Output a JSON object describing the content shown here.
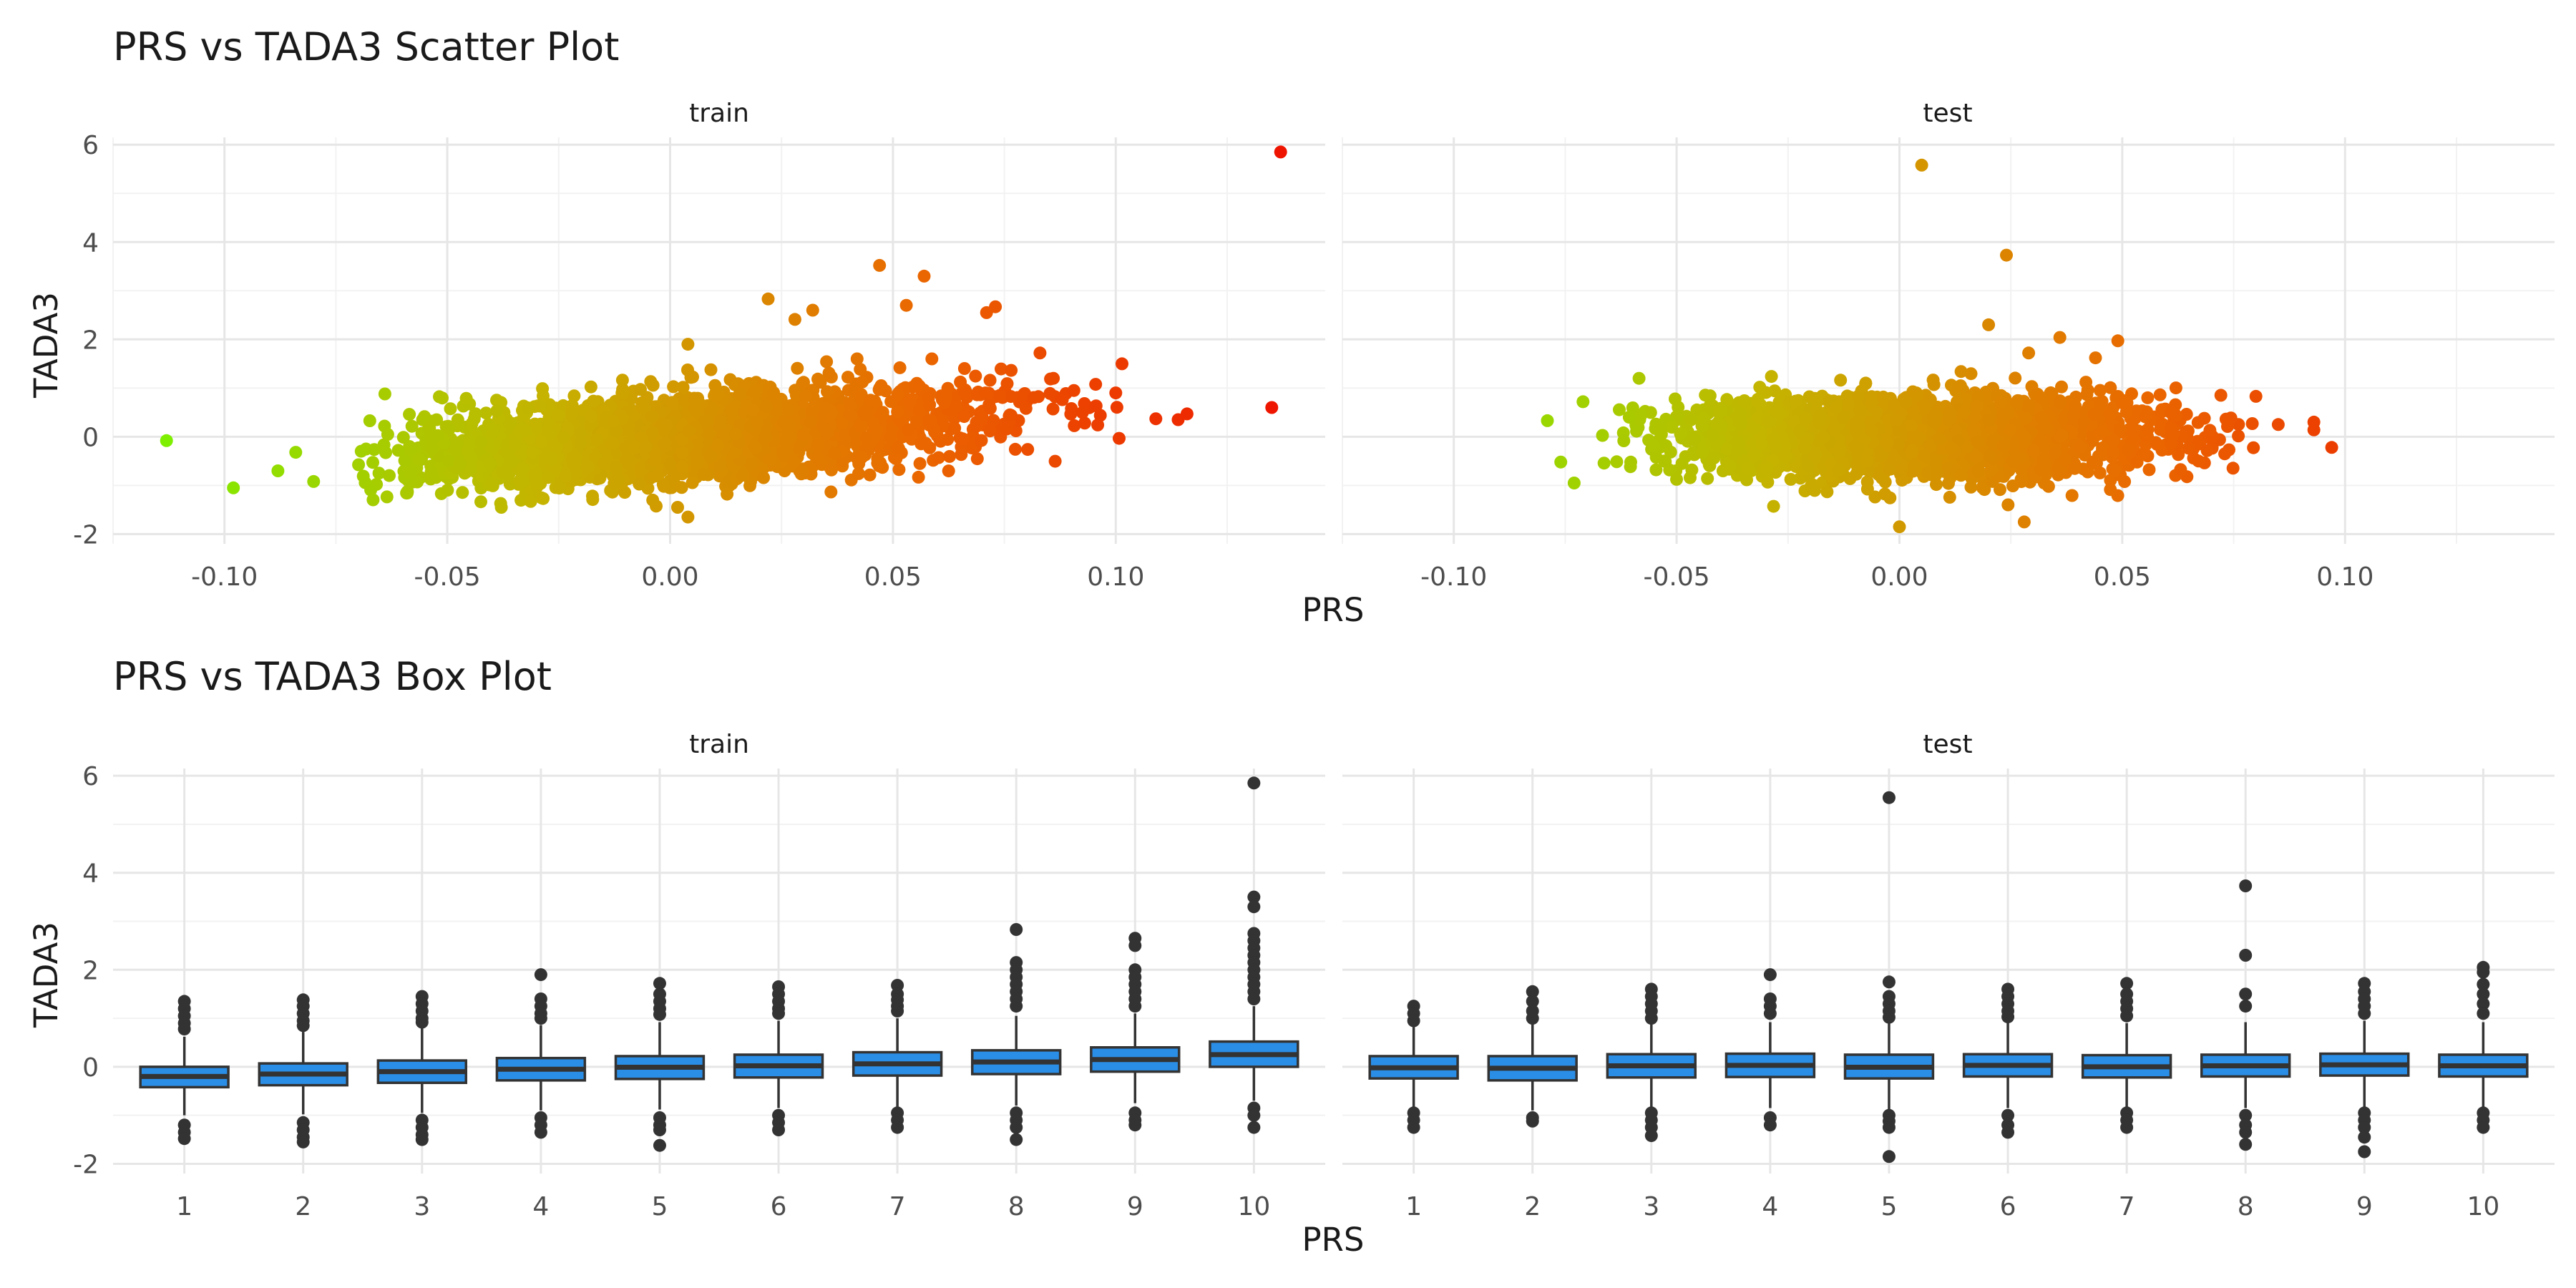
{
  "chart_data": [
    {
      "type": "scatter",
      "title": "PRS vs TADA3 Scatter Plot",
      "xlabel": "PRS",
      "ylabel": "TADA3",
      "xlim": [
        -0.125,
        0.147
      ],
      "ylim": [
        -2.2,
        6.15
      ],
      "x_ticks": [
        "-0.10",
        "-0.05",
        "0.00",
        "0.05",
        "0.10"
      ],
      "y_ticks": [
        "-2",
        "0",
        "2",
        "4",
        "6"
      ],
      "grid": true,
      "color_gradient": [
        "#7cf000",
        "#c4b400",
        "#ea6800",
        "#ee1100"
      ],
      "panels": [
        {
          "name": "train",
          "cloud": {
            "x_center": 0.005,
            "x_sd": 0.033,
            "x_range": [
              -0.07,
              0.102
            ],
            "y_intercept": -0.02,
            "y_slope": 6.5,
            "y_sd": 0.45
          },
          "points": [
            [
              -0.113,
              -0.08
            ],
            [
              -0.098,
              -1.05
            ],
            [
              -0.088,
              -0.7
            ],
            [
              -0.084,
              -0.32
            ],
            [
              -0.08,
              -0.92
            ],
            [
              -0.064,
              0.88
            ],
            [
              -0.061,
              -0.28
            ],
            [
              0.004,
              1.9
            ],
            [
              0.004,
              -1.65
            ],
            [
              0.022,
              2.83
            ],
            [
              0.032,
              2.6
            ],
            [
              0.028,
              2.41
            ],
            [
              0.047,
              3.52
            ],
            [
              0.057,
              3.3
            ],
            [
              0.053,
              2.7
            ],
            [
              0.073,
              2.67
            ],
            [
              0.071,
              2.55
            ],
            [
              0.083,
              1.72
            ],
            [
              0.086,
              1.2
            ],
            [
              0.1,
              0.9
            ],
            [
              0.109,
              0.37
            ],
            [
              0.114,
              0.35
            ],
            [
              0.116,
              0.47
            ],
            [
              0.135,
              0.6
            ],
            [
              0.137,
              5.85
            ]
          ]
        },
        {
          "name": "test",
          "cloud": {
            "x_center": 0.003,
            "x_sd": 0.027,
            "x_range": [
              -0.068,
              0.08
            ],
            "y_intercept": 0.0,
            "y_slope": 0.5,
            "y_sd": 0.42
          },
          "points": [
            [
              -0.079,
              0.33
            ],
            [
              -0.076,
              -0.52
            ],
            [
              -0.073,
              -0.95
            ],
            [
              -0.071,
              0.72
            ],
            [
              0.005,
              5.58
            ],
            [
              0.024,
              3.73
            ],
            [
              0.02,
              2.3
            ],
            [
              0.029,
              1.72
            ],
            [
              0.036,
              2.04
            ],
            [
              0.049,
              1.97
            ],
            [
              0.044,
              1.62
            ],
            [
              0.0,
              -1.85
            ],
            [
              0.028,
              -1.75
            ],
            [
              0.08,
              0.83
            ],
            [
              0.085,
              0.25
            ],
            [
              0.093,
              0.3
            ],
            [
              0.093,
              0.14
            ],
            [
              0.097,
              -0.22
            ],
            [
              0.073,
              -0.35
            ]
          ]
        }
      ]
    },
    {
      "type": "box",
      "title": "PRS vs TADA3 Box Plot",
      "xlabel": "PRS",
      "ylabel": "TADA3",
      "categories": [
        "1",
        "2",
        "3",
        "4",
        "5",
        "6",
        "7",
        "8",
        "9",
        "10"
      ],
      "ylim": [
        -2.2,
        6.15
      ],
      "y_ticks": [
        "-2",
        "0",
        "2",
        "4",
        "6"
      ],
      "box_color": "#2b8ee6",
      "panels": [
        {
          "name": "train",
          "boxes": [
            {
              "q1": -0.42,
              "median": -0.2,
              "q3": 0.0,
              "lo": -1.0,
              "hi": 0.62,
              "out": [
                1.35,
                1.2,
                1.05,
                0.9,
                0.78,
                -1.2,
                -1.35,
                -1.48
              ]
            },
            {
              "q1": -0.38,
              "median": -0.15,
              "q3": 0.07,
              "lo": -0.98,
              "hi": 0.72,
              "out": [
                1.38,
                1.25,
                1.1,
                0.95,
                0.85,
                -1.15,
                -1.3,
                -1.45,
                -1.55
              ]
            },
            {
              "q1": -0.33,
              "median": -0.1,
              "q3": 0.13,
              "lo": -0.95,
              "hi": 0.8,
              "out": [
                1.45,
                1.3,
                1.15,
                1.0,
                0.92,
                -1.1,
                -1.25,
                -1.4,
                -1.5
              ]
            },
            {
              "q1": -0.28,
              "median": -0.05,
              "q3": 0.18,
              "lo": -0.9,
              "hi": 0.86,
              "out": [
                1.9,
                1.4,
                1.25,
                1.1,
                1.0,
                -1.05,
                -1.2,
                -1.35
              ]
            },
            {
              "q1": -0.25,
              "median": -0.01,
              "q3": 0.22,
              "lo": -0.88,
              "hi": 0.92,
              "out": [
                1.72,
                1.5,
                1.35,
                1.2,
                1.08,
                -1.05,
                -1.2,
                -1.3,
                -1.62
              ]
            },
            {
              "q1": -0.22,
              "median": 0.02,
              "q3": 0.25,
              "lo": -0.85,
              "hi": 0.95,
              "out": [
                1.65,
                1.5,
                1.35,
                1.2,
                1.1,
                -1.0,
                -1.15,
                -1.3
              ]
            },
            {
              "q1": -0.18,
              "median": 0.06,
              "q3": 0.3,
              "lo": -0.82,
              "hi": 1.0,
              "out": [
                1.68,
                1.5,
                1.38,
                1.25,
                1.15,
                -0.95,
                -1.1,
                -1.25
              ]
            },
            {
              "q1": -0.15,
              "median": 0.1,
              "q3": 0.34,
              "lo": -0.8,
              "hi": 1.05,
              "out": [
                2.83,
                2.15,
                2.0,
                1.85,
                1.7,
                1.55,
                1.4,
                1.25,
                -0.95,
                -1.1,
                -1.25,
                -1.5
              ]
            },
            {
              "q1": -0.1,
              "median": 0.15,
              "q3": 0.4,
              "lo": -0.75,
              "hi": 1.1,
              "out": [
                2.65,
                2.5,
                2.0,
                1.85,
                1.7,
                1.55,
                1.4,
                1.25,
                -0.95,
                -1.1,
                -1.2
              ]
            },
            {
              "q1": 0.0,
              "median": 0.25,
              "q3": 0.52,
              "lo": -0.7,
              "hi": 1.25,
              "out": [
                5.85,
                3.5,
                3.3,
                2.75,
                2.6,
                2.45,
                2.3,
                2.15,
                2.0,
                1.85,
                1.7,
                1.55,
                1.4,
                -0.85,
                -1.0,
                -1.25
              ]
            }
          ]
        },
        {
          "name": "test",
          "boxes": [
            {
              "q1": -0.24,
              "median": -0.02,
              "q3": 0.22,
              "lo": -0.88,
              "hi": 0.82,
              "out": [
                1.25,
                1.1,
                0.95,
                -0.95,
                -1.1,
                -1.25
              ]
            },
            {
              "q1": -0.28,
              "median": -0.03,
              "q3": 0.22,
              "lo": -0.9,
              "hi": 0.88,
              "out": [
                1.55,
                1.35,
                1.15,
                1.0,
                -1.05,
                -1.12
              ]
            },
            {
              "q1": -0.22,
              "median": 0.02,
              "q3": 0.26,
              "lo": -0.85,
              "hi": 0.9,
              "out": [
                1.6,
                1.45,
                1.3,
                1.15,
                1.0,
                -0.95,
                -1.1,
                -1.25,
                -1.42
              ]
            },
            {
              "q1": -0.21,
              "median": 0.03,
              "q3": 0.27,
              "lo": -0.85,
              "hi": 0.92,
              "out": [
                1.9,
                1.4,
                1.25,
                1.1,
                -1.05,
                -1.2
              ]
            },
            {
              "q1": -0.24,
              "median": -0.01,
              "q3": 0.25,
              "lo": -0.88,
              "hi": 0.9,
              "out": [
                5.55,
                1.75,
                1.45,
                1.3,
                1.15,
                1.02,
                -1.0,
                -1.12,
                -1.25,
                -1.85
              ]
            },
            {
              "q1": -0.2,
              "median": 0.03,
              "q3": 0.26,
              "lo": -0.85,
              "hi": 0.92,
              "out": [
                1.6,
                1.45,
                1.3,
                1.15,
                1.03,
                -1.0,
                -1.2,
                -1.35
              ]
            },
            {
              "q1": -0.22,
              "median": 0.0,
              "q3": 0.24,
              "lo": -0.85,
              "hi": 0.9,
              "out": [
                1.72,
                1.5,
                1.35,
                1.2,
                1.05,
                -0.95,
                -1.1,
                -1.25
              ]
            },
            {
              "q1": -0.2,
              "median": 0.02,
              "q3": 0.25,
              "lo": -0.85,
              "hi": 0.92,
              "out": [
                3.73,
                2.3,
                1.5,
                1.25,
                -1.0,
                -1.2,
                -1.35,
                -1.6
              ]
            },
            {
              "q1": -0.18,
              "median": 0.04,
              "q3": 0.27,
              "lo": -0.83,
              "hi": 0.95,
              "out": [
                1.72,
                1.55,
                1.4,
                1.25,
                1.1,
                -0.95,
                -1.1,
                -1.25,
                -1.45,
                -1.75
              ]
            },
            {
              "q1": -0.2,
              "median": 0.02,
              "q3": 0.25,
              "lo": -0.85,
              "hi": 0.92,
              "out": [
                2.05,
                1.95,
                1.7,
                1.5,
                1.3,
                1.1,
                -0.95,
                -1.1,
                -1.25
              ]
            }
          ]
        }
      ]
    }
  ]
}
